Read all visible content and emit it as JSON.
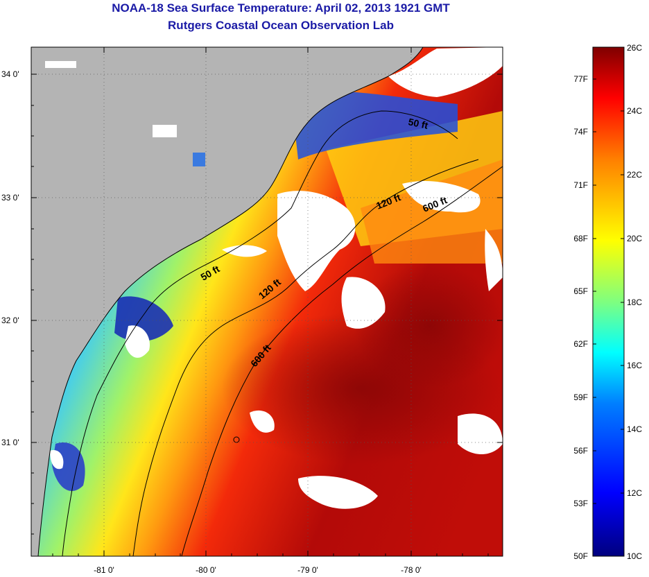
{
  "title": "NOAA-18 Sea Surface Temperature:  April 02, 2013 1921 GMT",
  "subtitle": "Rutgers Coastal Ocean Observation Lab",
  "lat_ticks": [
    "34 0'",
    "33 0'",
    "32 0'",
    "31 0'"
  ],
  "lon_ticks": [
    "-81 0'",
    "-80 0'",
    "-79 0'",
    "-78 0'"
  ],
  "contour_labels": [
    "50 ft",
    "120 ft",
    "600 ft",
    "50 ft",
    "120 ft",
    "600 ft"
  ],
  "colorbar": {
    "fahrenheit_labels": [
      "77F",
      "74F",
      "71F",
      "68F",
      "65F",
      "62F",
      "59F",
      "56F",
      "53F",
      "50F"
    ],
    "celsius_labels": [
      "26C",
      "24C",
      "22C",
      "20C",
      "18C",
      "16C",
      "14C",
      "12C",
      "10C"
    ],
    "colors": [
      "#00007f",
      "#0000ff",
      "#007fff",
      "#00ffff",
      "#7fff7f",
      "#ffff00",
      "#ff7f00",
      "#ff0000",
      "#7f0000"
    ]
  },
  "colors": {
    "land": "#b4b4b4",
    "cloud": "#ffffff",
    "title": "#1a1aa6"
  }
}
